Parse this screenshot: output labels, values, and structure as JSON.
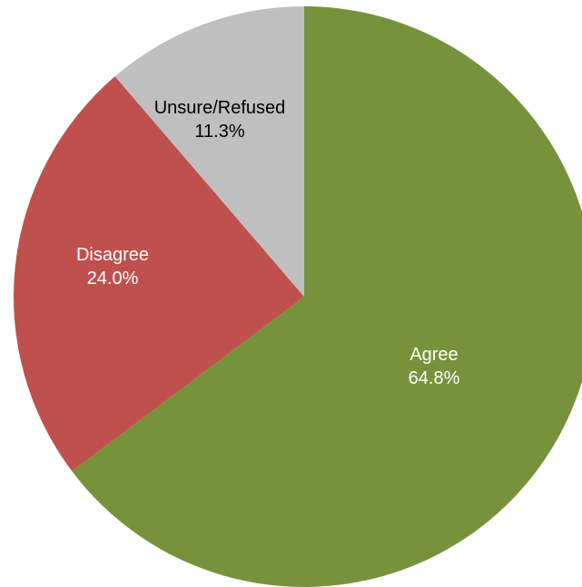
{
  "chart_data": {
    "type": "pie",
    "start_angle_deg": 0,
    "direction": "clockwise",
    "slices": [
      {
        "label": "Agree",
        "value": 64.8,
        "value_text": "64.8%",
        "color": "#76933c",
        "label_color": "#ffffff"
      },
      {
        "label": "Disagree",
        "value": 24.0,
        "value_text": "24.0%",
        "color": "#c0504d",
        "label_color": "#ffffff"
      },
      {
        "label": "Unsure/Refused",
        "value": 11.3,
        "value_text": "11.3%",
        "color": "#bfbfbf",
        "label_color": "#000000"
      }
    ]
  }
}
